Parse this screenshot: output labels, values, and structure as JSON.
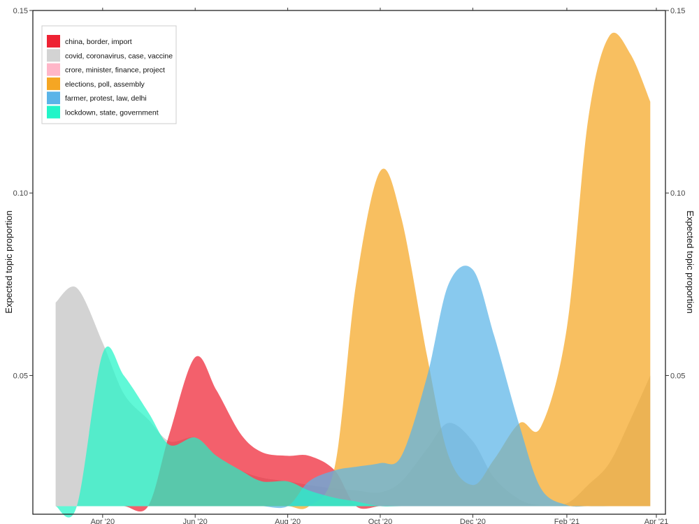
{
  "chart_data": {
    "type": "area",
    "x_dates": [
      "2020-03-01",
      "2020-03-15",
      "2020-04-01",
      "2020-04-15",
      "2020-05-01",
      "2020-05-15",
      "2020-06-01",
      "2020-06-15",
      "2020-07-01",
      "2020-07-15",
      "2020-08-01",
      "2020-08-15",
      "2020-09-01",
      "2020-09-15",
      "2020-10-01",
      "2020-10-15",
      "2020-11-01",
      "2020-11-15",
      "2020-12-01",
      "2020-12-15",
      "2021-01-01",
      "2021-01-15",
      "2021-02-01",
      "2021-02-15",
      "2021-03-01",
      "2021-03-15",
      "2021-03-28"
    ],
    "x_ticks": [
      "2020-04-01",
      "2020-06-01",
      "2020-08-01",
      "2020-10-01",
      "2020-12-01",
      "2021-02-01",
      "2021-04-01"
    ],
    "x_tick_labels": [
      "Apr '20",
      "Jun '20",
      "Aug '20",
      "Oct '20",
      "Dec '20",
      "Feb '21",
      "Apr '21"
    ],
    "x_range": [
      "2020-02-15",
      "2021-04-07"
    ],
    "ylabel": "Expected topic proportion",
    "ylim": [
      0.012,
      0.15
    ],
    "y_ticks": [
      0.05,
      0.1,
      0.15
    ],
    "y_tick_labels": [
      "0.05",
      "0.10",
      "0.15"
    ],
    "baseline": 0.0142,
    "legend_position": "top-left",
    "grid": false,
    "series": [
      {
        "name": "china, border, import",
        "color": "#ee2233",
        "values": [
          0.0142,
          0.0142,
          0.0142,
          0.0142,
          0.0142,
          0.034,
          0.055,
          0.046,
          0.034,
          0.029,
          0.028,
          0.028,
          0.024,
          0.0142,
          0.0142,
          0.0142,
          0.0142,
          0.0142,
          0.0142,
          0.0142,
          0.0142,
          0.0142,
          0.0142,
          0.0142,
          0.0142,
          0.0142,
          0.0142
        ]
      },
      {
        "name": "covid, coronavirus, case, vaccine",
        "color": "#d3d3d3",
        "values": [
          0.07,
          0.074,
          0.059,
          0.045,
          0.038,
          0.032,
          0.033,
          0.028,
          0.024,
          0.022,
          0.021,
          0.02,
          0.019,
          0.0185,
          0.018,
          0.021,
          0.03,
          0.037,
          0.032,
          0.022,
          0.016,
          0.0145,
          0.015,
          0.02,
          0.026,
          0.038,
          0.05
        ]
      },
      {
        "name": "crore, minister, finance, project",
        "color": "#ffb6c8",
        "values": [
          0.0142,
          0.0142,
          0.0142,
          0.0142,
          0.0142,
          0.0142,
          0.0142,
          0.0142,
          0.0142,
          0.0142,
          0.0142,
          0.0142,
          0.0142,
          0.0142,
          0.0142,
          0.0142,
          0.0142,
          0.0142,
          0.0142,
          0.0142,
          0.0142,
          0.0142,
          0.0142,
          0.0142,
          0.0142,
          0.0142,
          0.0142
        ]
      },
      {
        "name": "elections, poll, assembly",
        "color": "#f5a623",
        "values": [
          0.0142,
          0.0142,
          0.0142,
          0.0142,
          0.0142,
          0.0142,
          0.0142,
          0.0142,
          0.0142,
          0.0142,
          0.0142,
          0.0142,
          0.025,
          0.075,
          0.106,
          0.093,
          0.055,
          0.028,
          0.02,
          0.027,
          0.037,
          0.036,
          0.063,
          0.12,
          0.143,
          0.138,
          0.125
        ]
      },
      {
        "name": "farmer, protest, law, delhi",
        "color": "#5ab4e8",
        "values": [
          0.0142,
          0.0142,
          0.0142,
          0.0142,
          0.0142,
          0.0142,
          0.0142,
          0.0142,
          0.0142,
          0.0142,
          0.0142,
          0.021,
          0.024,
          0.025,
          0.026,
          0.028,
          0.05,
          0.075,
          0.079,
          0.061,
          0.036,
          0.019,
          0.0145,
          0.0142,
          0.0142,
          0.0142,
          0.0142
        ]
      },
      {
        "name": "lockdown, state, government",
        "color": "#22f5c8",
        "values": [
          0.0142,
          0.0142,
          0.056,
          0.05,
          0.04,
          0.031,
          0.033,
          0.028,
          0.024,
          0.021,
          0.021,
          0.0185,
          0.0165,
          0.0155,
          0.0142,
          0.0142,
          0.0142,
          0.0142,
          0.0142,
          0.0142,
          0.0142,
          0.0142,
          0.0142,
          0.0142,
          0.0142,
          0.0142,
          0.0142
        ]
      }
    ]
  }
}
